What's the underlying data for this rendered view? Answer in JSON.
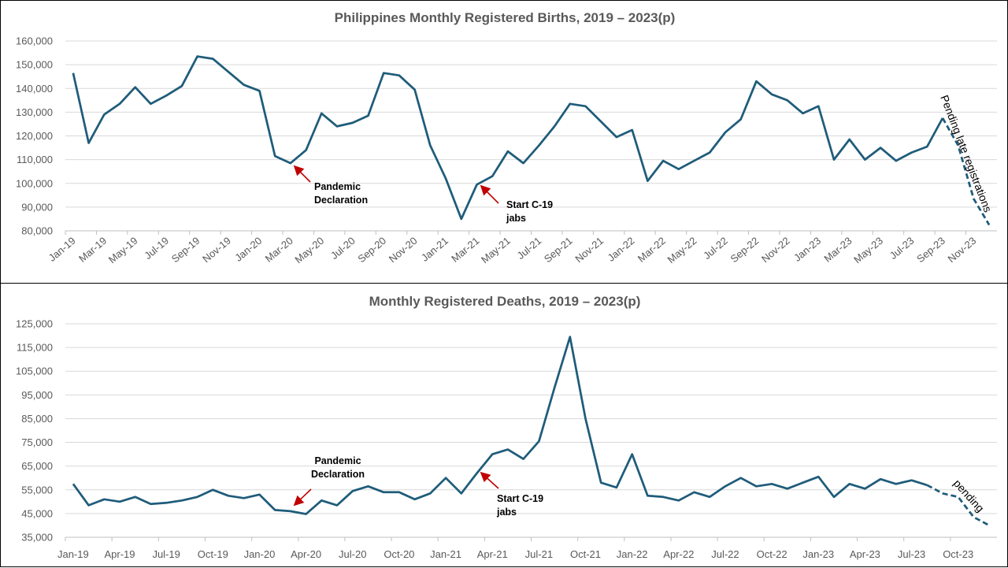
{
  "chart_data": [
    {
      "type": "line",
      "title": "Philippines Monthly Registered Births, 2019 – 2023(p)",
      "ylim": [
        80000,
        160000
      ],
      "y_ticks": [
        "80,000",
        "90,000",
        "100,000",
        "110,000",
        "120,000",
        "130,000",
        "140,000",
        "150,000",
        "160,000"
      ],
      "x_tick_labels": [
        "Jan-19",
        "Mar-19",
        "May-19",
        "Jul-19",
        "Sep-19",
        "Nov-19",
        "Jan-20",
        "Mar-20",
        "May-20",
        "Jul-20",
        "Sep-20",
        "Nov-20",
        "Jan-21",
        "Mar-21",
        "May-21",
        "Jul-21",
        "Sep-21",
        "Nov-21",
        "Jan-22",
        "Mar-22",
        "May-22",
        "Jul-22",
        "Sep-22",
        "Nov-22",
        "Jan-23",
        "Mar-23",
        "May-23",
        "Jul-23",
        "Sep-23",
        "Nov-23"
      ],
      "x_tick_step": 2,
      "grid": true,
      "line_color": "#1f5c7a",
      "x": [
        "Jan-19",
        "Feb-19",
        "Mar-19",
        "Apr-19",
        "May-19",
        "Jun-19",
        "Jul-19",
        "Aug-19",
        "Sep-19",
        "Oct-19",
        "Nov-19",
        "Dec-19",
        "Jan-20",
        "Feb-20",
        "Mar-20",
        "Apr-20",
        "May-20",
        "Jun-20",
        "Jul-20",
        "Aug-20",
        "Sep-20",
        "Oct-20",
        "Nov-20",
        "Dec-20",
        "Jan-21",
        "Feb-21",
        "Mar-21",
        "Apr-21",
        "May-21",
        "Jun-21",
        "Jul-21",
        "Aug-21",
        "Sep-21",
        "Oct-21",
        "Nov-21",
        "Dec-21",
        "Jan-22",
        "Feb-22",
        "Mar-22",
        "Apr-22",
        "May-22",
        "Jun-22",
        "Jul-22",
        "Aug-22",
        "Sep-22",
        "Oct-22",
        "Nov-22",
        "Dec-22",
        "Jan-23",
        "Feb-23",
        "Mar-23",
        "Apr-23",
        "May-23",
        "Jun-23",
        "Jul-23",
        "Aug-23",
        "Sep-23",
        "Oct-23",
        "Nov-23",
        "Dec-23"
      ],
      "values": [
        146500,
        117000,
        129000,
        133500,
        140500,
        133500,
        137000,
        141000,
        153500,
        152500,
        147000,
        141500,
        139000,
        111500,
        108500,
        114000,
        129500,
        124000,
        125500,
        128500,
        146500,
        145500,
        139500,
        116000,
        102000,
        85000,
        99500,
        103000,
        113500,
        108500,
        116000,
        124000,
        133500,
        132500,
        126000,
        119500,
        122500,
        101000,
        109500,
        106000,
        109500,
        113000,
        121500,
        127000,
        143000,
        137500,
        135000,
        129500,
        132500,
        110000,
        118500,
        110000,
        115000,
        109500,
        113000,
        115500,
        127500,
        116000,
        93500,
        82500
      ],
      "dashed_from_index": 56,
      "annotations": [
        {
          "text": [
            "Pandemic",
            "Declaration"
          ],
          "point_index": 14
        },
        {
          "text": [
            "Start C-19",
            "jabs"
          ],
          "point_index": 26
        },
        {
          "text": [
            "Pending late registrations"
          ],
          "point_index": 57
        }
      ]
    },
    {
      "type": "line",
      "title": "Monthly Registered Deaths, 2019 – 2023(p)",
      "ylim": [
        35000,
        125000
      ],
      "y_ticks": [
        "35,000",
        "45,000",
        "55,000",
        "65,000",
        "75,000",
        "85,000",
        "95,000",
        "105,000",
        "115,000",
        "125,000"
      ],
      "x_tick_labels": [
        "Jan-19",
        "Apr-19",
        "Jul-19",
        "Oct-19",
        "Jan-20",
        "Apr-20",
        "Jul-20",
        "Oct-20",
        "Jan-21",
        "Apr-21",
        "Jul-21",
        "Oct-21",
        "Jan-22",
        "Apr-22",
        "Jul-22",
        "Oct-22",
        "Jan-23",
        "Apr-23",
        "Jul-23",
        "Oct-23"
      ],
      "x_tick_step": 3,
      "grid": true,
      "line_color": "#1f5c7a",
      "x": [
        "Jan-19",
        "Feb-19",
        "Mar-19",
        "Apr-19",
        "May-19",
        "Jun-19",
        "Jul-19",
        "Aug-19",
        "Sep-19",
        "Oct-19",
        "Nov-19",
        "Dec-19",
        "Jan-20",
        "Feb-20",
        "Mar-20",
        "Apr-20",
        "May-20",
        "Jun-20",
        "Jul-20",
        "Aug-20",
        "Sep-20",
        "Oct-20",
        "Nov-20",
        "Dec-20",
        "Jan-21",
        "Feb-21",
        "Mar-21",
        "Apr-21",
        "May-21",
        "Jun-21",
        "Jul-21",
        "Aug-21",
        "Sep-21",
        "Oct-21",
        "Nov-21",
        "Dec-21",
        "Jan-22",
        "Feb-22",
        "Mar-22",
        "Apr-22",
        "May-22",
        "Jun-22",
        "Jul-22",
        "Aug-22",
        "Sep-22",
        "Oct-22",
        "Nov-22",
        "Dec-22",
        "Jan-23",
        "Feb-23",
        "Mar-23",
        "Apr-23",
        "May-23",
        "Jun-23",
        "Jul-23",
        "Aug-23",
        "Sep-23",
        "Oct-23",
        "Nov-23",
        "Dec-23"
      ],
      "values": [
        57500,
        48500,
        51000,
        50000,
        52000,
        49000,
        49500,
        50500,
        52000,
        55000,
        52500,
        51500,
        53000,
        46500,
        46000,
        44800,
        50500,
        48500,
        54500,
        56500,
        54000,
        54000,
        51000,
        53500,
        60000,
        53500,
        62000,
        70000,
        72000,
        68000,
        75500,
        98000,
        119500,
        85000,
        58000,
        56000,
        70000,
        52500,
        52000,
        50500,
        54000,
        52000,
        56500,
        60000,
        56500,
        57500,
        55500,
        58000,
        60500,
        52000,
        57500,
        55500,
        59500,
        57500,
        59000,
        57000,
        53500,
        52000,
        43500,
        40000
      ],
      "dashed_from_index": 55,
      "annotations": [
        {
          "text": [
            "Pandemic",
            "Declaration"
          ],
          "point_index": 15
        },
        {
          "text": [
            "Start C-19",
            "jabs"
          ],
          "point_index": 27
        },
        {
          "text": [
            "pending"
          ],
          "point_index": 57
        }
      ]
    }
  ]
}
